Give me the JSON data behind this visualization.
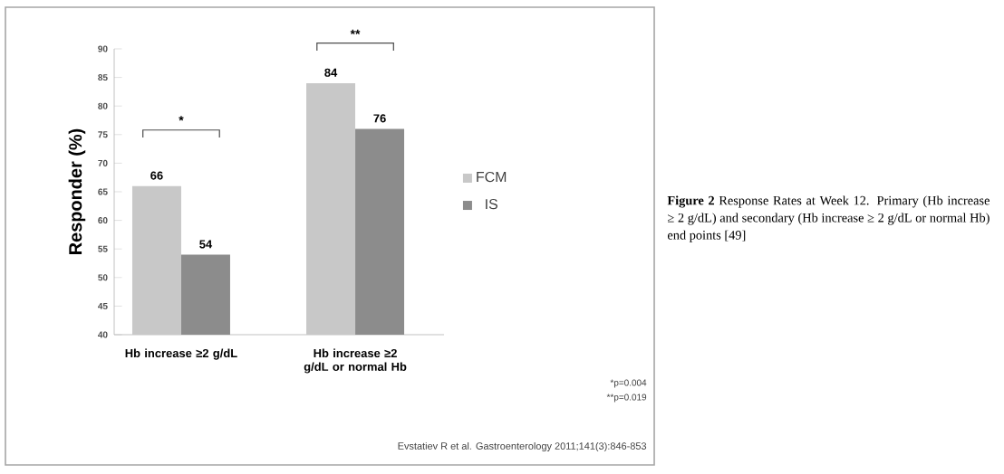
{
  "chart_data": {
    "type": "bar",
    "ylabel": "Responder (%)",
    "categories": [
      "Hb increase ≥2 g/dL",
      "Hb increase ≥2 g/dL or normal Hb"
    ],
    "series": [
      {
        "name": "FCM",
        "color": "#c8c8c8",
        "values": [
          66,
          84
        ]
      },
      {
        "name": "IS",
        "color": "#8c8c8c",
        "values": [
          54,
          76
        ]
      }
    ],
    "ylim": [
      40,
      90
    ],
    "yticks": [
      40,
      45,
      50,
      55,
      60,
      65,
      70,
      75,
      80,
      85,
      90
    ],
    "data_labels": true,
    "legend": "right",
    "grid": false,
    "annotations": [
      "*",
      "**",
      "*p=0.004",
      "**p=0.019",
      "Evstatiev R et al. Gastroenterology 2011;141(3):846-853",
      "**Figure 2** Response Rates at Week 12. Primary (Hb increase ≥ 2 g/dL) and secondary (Hb increase ≥ 2 g/dL or normal Hb) end points [49]"
    ]
  }
}
